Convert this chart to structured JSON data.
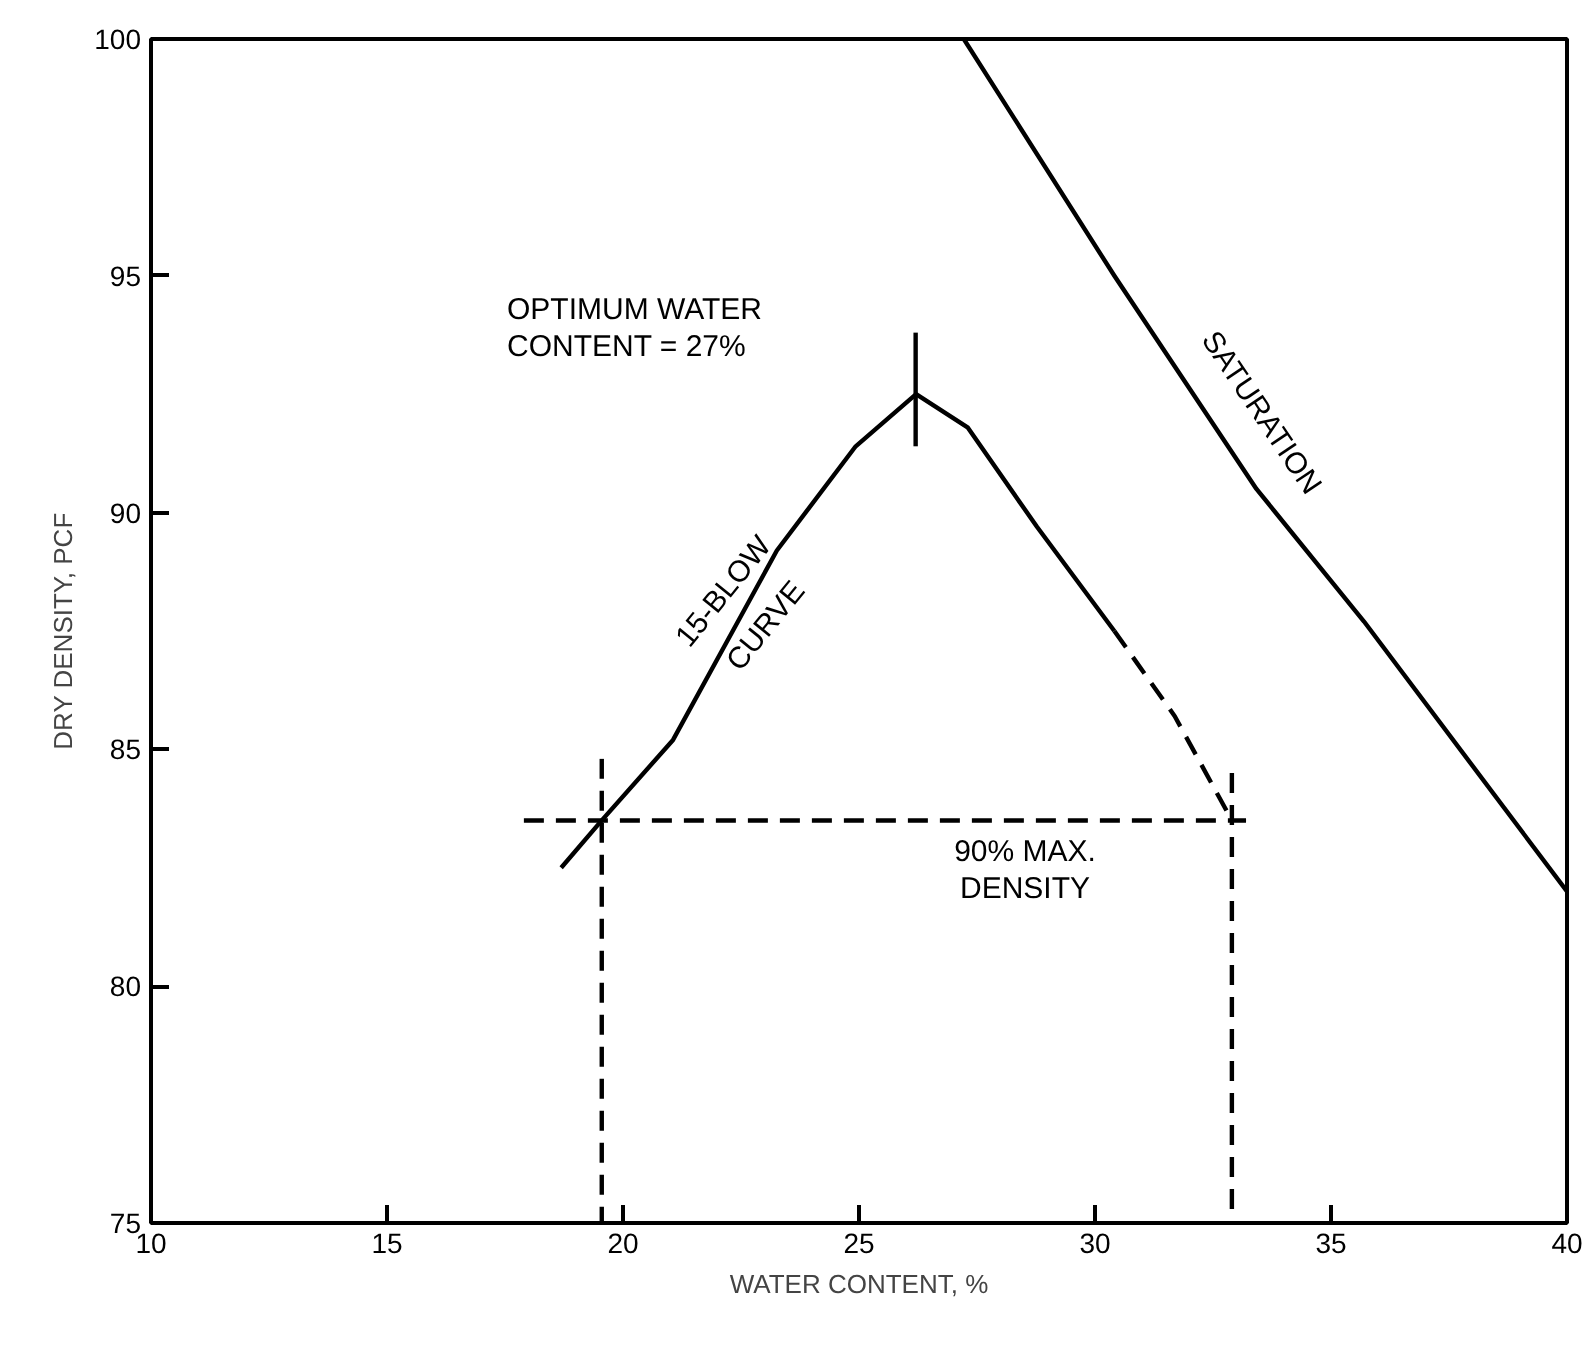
{
  "chart_data": {
    "type": "line",
    "xlabel": "WATER CONTENT, %",
    "ylabel": "DRY DENSITY, PCF",
    "xlim": [
      10,
      40
    ],
    "xticks": [
      10,
      15,
      20,
      25,
      30,
      35,
      40
    ],
    "ylim": [
      75,
      100
    ],
    "yticks": [
      75,
      80,
      85,
      90,
      95,
      100
    ],
    "grid": false,
    "marker": "none",
    "series": [
      {
        "color": "#000000",
        "line_style": "solid",
        "x": [
          18.69,
          19.55,
          21.06,
          23.26,
          24.93,
          26.21,
          27.3,
          28.77,
          30.41
        ],
        "values": [
          82.5,
          83.5,
          85.2,
          89.2,
          91.4,
          92.5,
          91.8,
          89.7,
          87.5
        ]
      },
      {
        "color": "#000000",
        "line_style": "dashed",
        "x": [
          30.41,
          31.69,
          32.79
        ],
        "values": [
          87.5,
          85.7,
          83.7
        ]
      },
      {
        "color": "#000000",
        "line_style": "solid",
        "x": [
          27.22,
          30.41,
          33.42,
          35.7,
          40.0
        ],
        "values": [
          100.0,
          95.0,
          90.5,
          87.7,
          82.0
        ]
      },
      {
        "color": "#000000",
        "line_style": "solid",
        "x": [
          26.2,
          26.2
        ],
        "values": [
          93.8,
          91.4
        ]
      },
      {
        "color": "#000000",
        "line_style": "dashed",
        "x": [
          17.9,
          33.2
        ],
        "values": [
          83.5,
          83.5
        ]
      },
      {
        "color": "#000000",
        "line_style": "dashed",
        "x": [
          19.55,
          19.55
        ],
        "values": [
          84.8,
          75.0
        ]
      },
      {
        "color": "#000000",
        "line_style": "dashed",
        "x": [
          32.9,
          32.9
        ],
        "values": [
          84.5,
          75.0
        ]
      }
    ],
    "annotations": [
      "OPTIMUM WATER\nCONTENT = 27%",
      "15-BLOW\nCURVE",
      "SATURATION",
      "90% MAX.\nDENSITY"
    ]
  }
}
